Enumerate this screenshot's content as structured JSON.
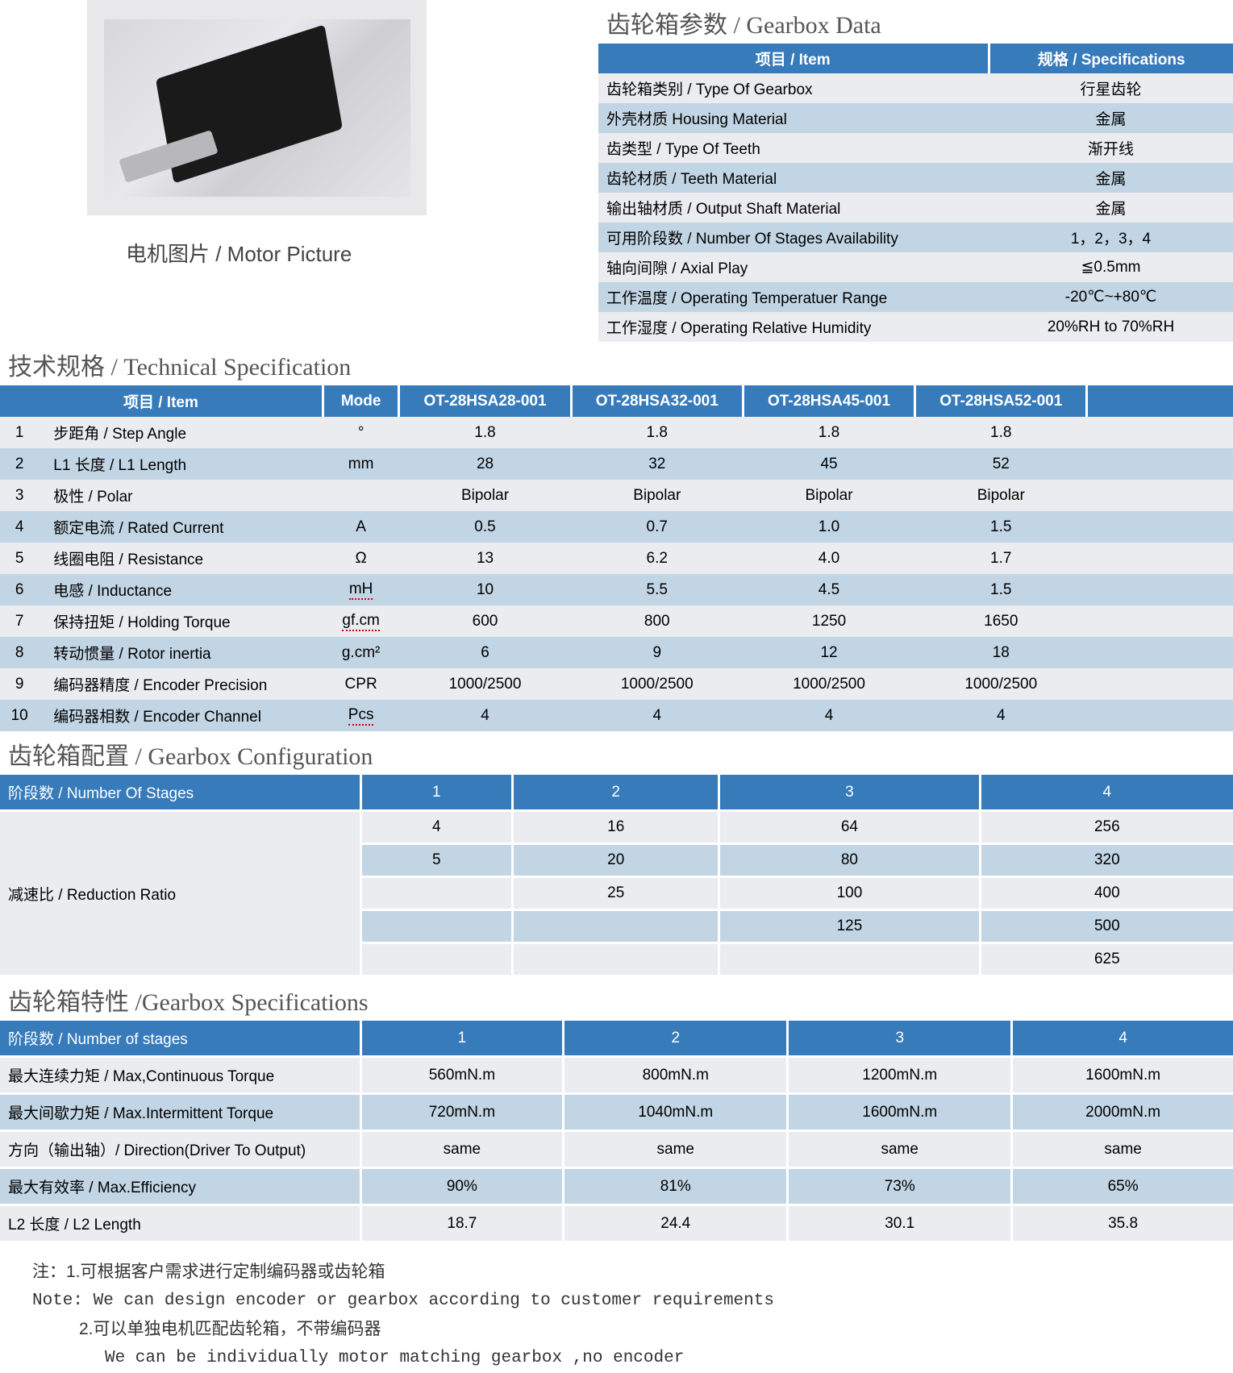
{
  "motor_caption": "电机图片 / Motor Picture",
  "colors": {
    "header_bg": "#377bbb",
    "header_fg": "#ffffff",
    "row_light": "#eaecef",
    "row_dark": "#c2d5e4",
    "section_title_color": "#555555",
    "background": "#ffffff"
  },
  "gearbox_data": {
    "title": "齿轮箱参数 / Gearbox Data",
    "header_item": "项目 / Item",
    "header_spec": "规格 / Specifications",
    "rows": [
      {
        "item": "齿轮箱类别 / Type Of Gearbox",
        "spec": "行星齿轮"
      },
      {
        "item": "外壳材质 Housing Material",
        "spec": "金属"
      },
      {
        "item": "齿类型 / Type Of  Teeth",
        "spec": "渐开线"
      },
      {
        "item": "齿轮材质 / Teeth Material",
        "spec": "金属"
      },
      {
        "item": "输出轴材质 / Output Shaft Material",
        "spec": "金属"
      },
      {
        "item": "可用阶段数 / Number Of Stages Availability",
        "spec": "1，2，3，4"
      },
      {
        "item": "轴向间隙 / Axial Play",
        "spec": "≦0.5mm"
      },
      {
        "item": "工作温度 / Operating Temperatuer Range",
        "spec": "-20℃~+80℃"
      },
      {
        "item": "工作湿度 / Operating Relative Humidity",
        "spec": "20%RH to 70%RH"
      }
    ]
  },
  "tech_spec": {
    "title": "技术规格 / Technical Specification",
    "header_item": "项目 / Item",
    "header_mode": "Mode",
    "models": [
      "OT-28HSA28-001",
      "OT-28HSA32-001",
      "OT-28HSA45-001",
      "OT-28HSA52-001"
    ],
    "rows": [
      {
        "idx": "1",
        "label": "步距角  / Step Angle",
        "mode": "°",
        "v": [
          "1.8",
          "1.8",
          "1.8",
          "1.8"
        ],
        "mode_underline": false
      },
      {
        "idx": "2",
        "label": "L1 长度  / L1 Length",
        "mode": "mm",
        "v": [
          "28",
          "32",
          "45",
          "52"
        ],
        "mode_underline": false
      },
      {
        "idx": "3",
        "label": "极性  / Polar",
        "mode": "",
        "v": [
          "Bipolar",
          "Bipolar",
          "Bipolar",
          "Bipolar"
        ],
        "mode_underline": false
      },
      {
        "idx": "4",
        "label": "额定电流  / Rated Current",
        "mode": "A",
        "v": [
          "0.5",
          "0.7",
          "1.0",
          "1.5"
        ],
        "mode_underline": false
      },
      {
        "idx": "5",
        "label": "线圈电阻  / Resistance",
        "mode": "Ω",
        "v": [
          "13",
          "6.2",
          "4.0",
          "1.7"
        ],
        "mode_underline": false
      },
      {
        "idx": "6",
        "label": "电感  / Inductance",
        "mode": "mH",
        "v": [
          "10",
          "5.5",
          "4.5",
          "1.5"
        ],
        "mode_underline": true
      },
      {
        "idx": "7",
        "label": "保持扭矩  / Holding Torque",
        "mode": "gf.cm",
        "v": [
          "600",
          "800",
          "1250",
          "1650"
        ],
        "mode_underline": true
      },
      {
        "idx": "8",
        "label": "转动惯量 / Rotor inertia",
        "mode": "g.cm²",
        "v": [
          "6",
          "9",
          "12",
          "18"
        ],
        "mode_underline": false
      },
      {
        "idx": "9",
        "label": "编码器精度  / Encoder Precision",
        "mode": "CPR",
        "v": [
          "1000/2500",
          "1000/2500",
          "1000/2500",
          "1000/2500"
        ],
        "mode_underline": false
      },
      {
        "idx": "10",
        "label": "编码器相数  / Encoder Channel",
        "mode": "Pcs",
        "v": [
          "4",
          "4",
          "4",
          "4"
        ],
        "mode_underline": true
      }
    ]
  },
  "gearbox_config": {
    "title": "齿轮箱配置 / Gearbox Configuration",
    "header_label": "阶段数 / Number Of Stages",
    "stages": [
      "1",
      "2",
      "3",
      "4"
    ],
    "row_label": "减速比 / Reduction Ratio",
    "values": [
      [
        "4",
        "16",
        "64",
        "256"
      ],
      [
        "5",
        "20",
        "80",
        "320"
      ],
      [
        "",
        "25",
        "100",
        "400"
      ],
      [
        "",
        "",
        "125",
        "500"
      ],
      [
        "",
        "",
        "",
        "625"
      ]
    ]
  },
  "gearbox_spec": {
    "title": "齿轮箱特性 /Gearbox Specifications",
    "header_label": "阶段数 / Number of stages",
    "stages": [
      "1",
      "2",
      "3",
      "4"
    ],
    "rows": [
      {
        "label": "最大连续力矩  / Max,Continuous Torque",
        "v": [
          "560mN.m",
          "800mN.m",
          "1200mN.m",
          "1600mN.m"
        ]
      },
      {
        "label": "最大间歇力矩  / Max.Intermittent Torque",
        "v": [
          "720mN.m",
          "1040mN.m",
          "1600mN.m",
          "2000mN.m"
        ]
      },
      {
        "label": "方向（输出轴）/ Direction(Driver To Output)",
        "v": [
          "same",
          "same",
          "same",
          "same"
        ]
      },
      {
        "label": "最大有效率  / Max.Efficiency",
        "v": [
          "90%",
          "81%",
          "73%",
          "65%"
        ]
      },
      {
        "label": " L2 长度  / L2 Length",
        "v": [
          "18.7",
          "24.4",
          "30.1",
          "35.8"
        ]
      }
    ]
  },
  "notes": {
    "line1": "注：1.可根据客户需求进行定制编码器或齿轮箱",
    "line2": "Note:  We can design encoder or gearbox according to customer requirements",
    "line3": "2.可以单独电机匹配齿轮箱，不带编码器",
    "line4": "We can be individually motor matching gearbox ,no encoder"
  }
}
